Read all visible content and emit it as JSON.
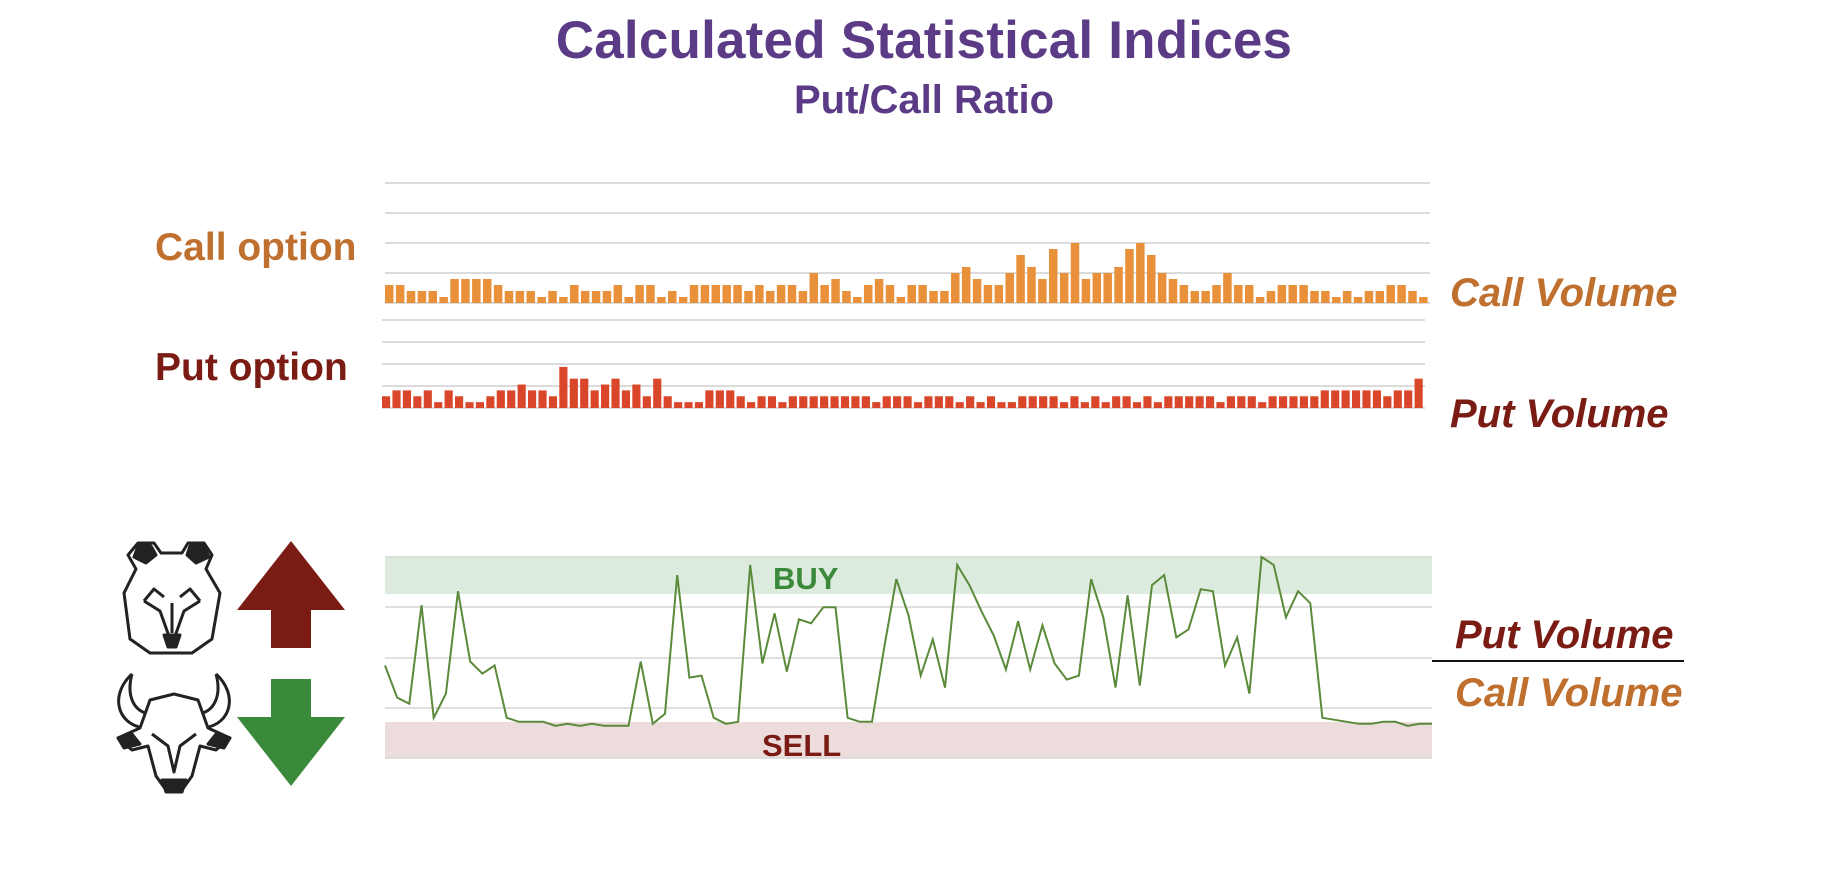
{
  "header": {
    "title": "Calculated Statistical Indices",
    "subtitle": "Put/Call Ratio"
  },
  "labels": {
    "call_option": "Call option",
    "put_option": "Put option",
    "call_volume": "Call Volume",
    "put_volume": "Put Volume",
    "ratio_numerator": "Put Volume",
    "ratio_denominator": "Call Volume",
    "buy": "BUY",
    "sell": "SELL"
  },
  "icons": {
    "bear": "bear-head-icon",
    "bull": "bull-head-icon",
    "up": "up-arrow-icon",
    "down": "down-arrow-icon"
  },
  "colors": {
    "title": "#5b3b86",
    "call": "#e8913a",
    "put": "#d9462a",
    "call_text": "#c0702e",
    "put_text": "#7a1c14",
    "ratio_line": "#5a8a3a",
    "buy_zone": "#dcebdd",
    "sell_zone": "#ecdcdc",
    "buy_text": "#3b8a3b",
    "sell_text": "#7a1c14",
    "up_arrow": "#7a1c14",
    "down_arrow": "#3b8a3b"
  },
  "chart_data": [
    {
      "type": "bar",
      "name": "Call option",
      "values": [
        3,
        3,
        2,
        2,
        2,
        1,
        4,
        4,
        4,
        4,
        3,
        2,
        2,
        2,
        1,
        2,
        1,
        3,
        2,
        2,
        2,
        3,
        1,
        3,
        3,
        1,
        2,
        1,
        3,
        3,
        3,
        3,
        3,
        2,
        3,
        2,
        3,
        3,
        2,
        5,
        3,
        4,
        2,
        1,
        3,
        4,
        3,
        1,
        3,
        3,
        2,
        2,
        5,
        6,
        4,
        3,
        3,
        5,
        8,
        6,
        4,
        9,
        5,
        10,
        4,
        5,
        5,
        6,
        9,
        10,
        8,
        5,
        4,
        3,
        2,
        2,
        3,
        5,
        3,
        3,
        1,
        2,
        3,
        3,
        3,
        2,
        2,
        1,
        2,
        1,
        2,
        2,
        3,
        3,
        2,
        1
      ],
      "ylim": [
        0,
        20
      ]
    },
    {
      "type": "bar",
      "name": "Put option",
      "values": [
        2,
        3,
        3,
        2,
        3,
        1,
        3,
        2,
        1,
        1,
        2,
        3,
        3,
        4,
        3,
        3,
        2,
        7,
        5,
        5,
        3,
        4,
        5,
        3,
        4,
        2,
        5,
        2,
        1,
        1,
        1,
        3,
        3,
        3,
        2,
        1,
        2,
        2,
        1,
        2,
        2,
        2,
        2,
        2,
        2,
        2,
        2,
        1,
        2,
        2,
        2,
        1,
        2,
        2,
        2,
        1,
        2,
        1,
        2,
        1,
        1,
        2,
        2,
        2,
        2,
        1,
        2,
        1,
        2,
        1,
        2,
        2,
        1,
        2,
        1,
        2,
        2,
        2,
        2,
        2,
        1,
        2,
        2,
        2,
        1,
        2,
        2,
        2,
        2,
        2,
        3,
        3,
        3,
        3,
        3,
        3,
        2,
        3,
        3,
        5
      ],
      "ylim": [
        0,
        15
      ]
    },
    {
      "type": "line",
      "name": "Put/Call Ratio",
      "values": [
        0.46,
        0.3,
        0.27,
        0.76,
        0.2,
        0.32,
        0.83,
        0.48,
        0.42,
        0.46,
        0.2,
        0.18,
        0.18,
        0.18,
        0.16,
        0.17,
        0.16,
        0.17,
        0.16,
        0.16,
        0.16,
        0.48,
        0.17,
        0.22,
        0.91,
        0.4,
        0.41,
        0.2,
        0.17,
        0.18,
        0.96,
        0.47,
        0.72,
        0.43,
        0.69,
        0.67,
        0.75,
        0.75,
        0.2,
        0.18,
        0.18,
        0.55,
        0.89,
        0.71,
        0.41,
        0.59,
        0.35,
        0.96,
        0.86,
        0.73,
        0.61,
        0.44,
        0.68,
        0.44,
        0.66,
        0.47,
        0.39,
        0.41,
        0.89,
        0.7,
        0.35,
        0.81,
        0.36,
        0.86,
        0.91,
        0.6,
        0.64,
        0.84,
        0.83,
        0.46,
        0.6,
        0.32,
        1.0,
        0.96,
        0.7,
        0.83,
        0.77,
        0.2,
        0.19,
        0.18,
        0.17,
        0.17,
        0.18,
        0.18,
        0.16,
        0.17,
        0.17
      ],
      "ylim": [
        0,
        1
      ],
      "zones": {
        "buy": [
          0.8,
          1.0
        ],
        "sell": [
          0.0,
          0.17
        ]
      }
    }
  ]
}
